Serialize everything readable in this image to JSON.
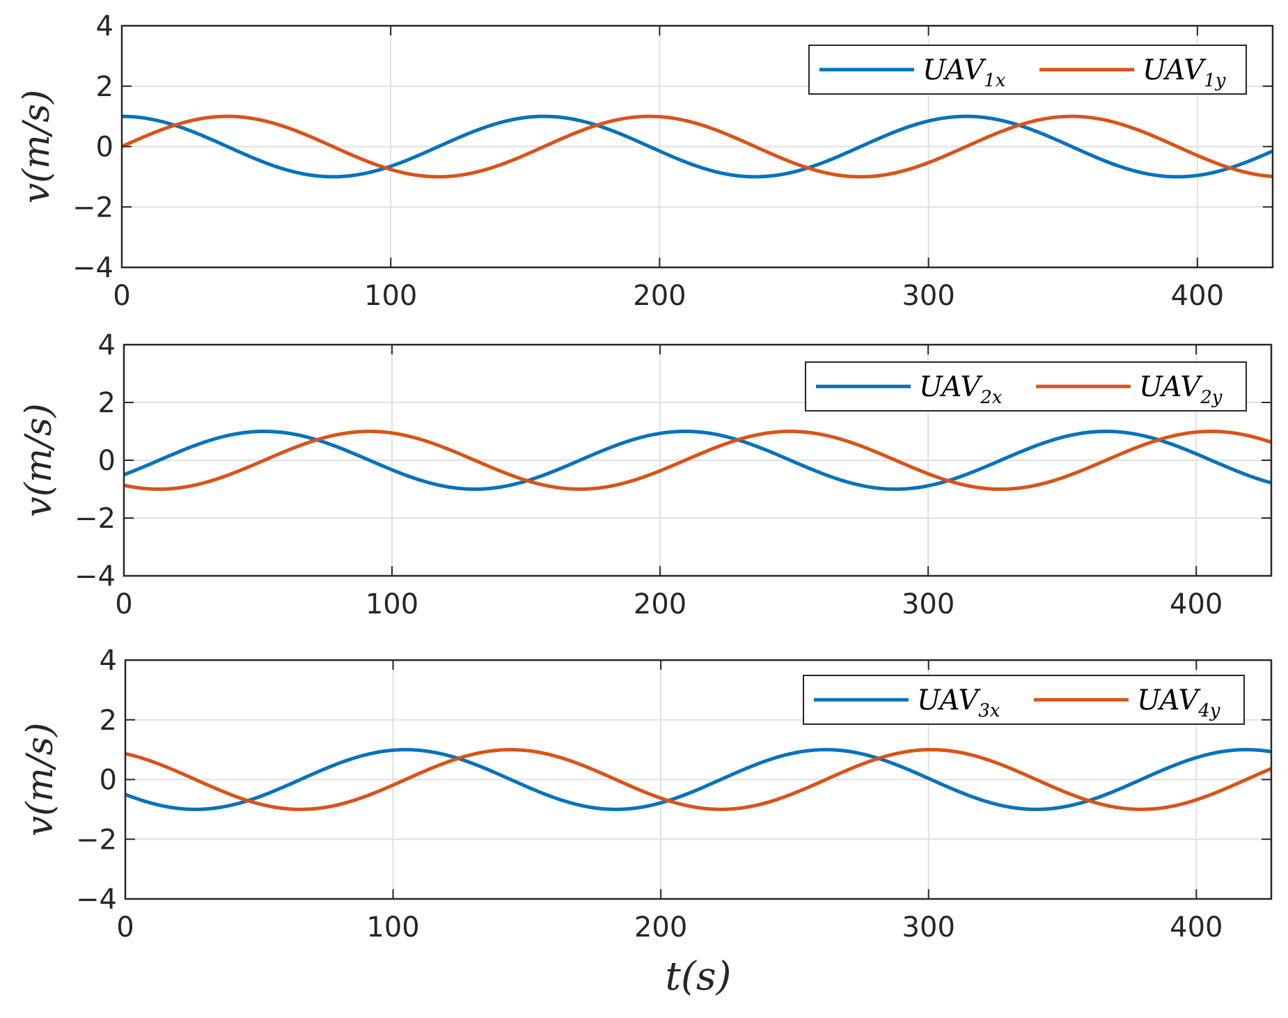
{
  "chart_data": [
    {
      "type": "line",
      "ylabel": "v(m/s)",
      "xlabel": "",
      "xlim": [
        0,
        428
      ],
      "ylim": [
        -4,
        4
      ],
      "xticks": [
        0,
        100,
        200,
        300,
        400
      ],
      "yticks": [
        -4,
        -2,
        0,
        2,
        4
      ],
      "grid": true,
      "legend_position": "top-right",
      "series": [
        {
          "name": "UAV1x",
          "legend_base": "UAV",
          "legend_sub": "1x",
          "color": "#0072BD",
          "amplitude": 1,
          "period": 157,
          "phase_deg": 90
        },
        {
          "name": "UAV1y",
          "legend_base": "UAV",
          "legend_sub": "1y",
          "color": "#D95319",
          "amplitude": 1,
          "period": 157,
          "phase_deg": 0
        }
      ]
    },
    {
      "type": "line",
      "ylabel": "v(m/s)",
      "xlabel": "",
      "xlim": [
        0,
        428
      ],
      "ylim": [
        -4,
        4
      ],
      "xticks": [
        0,
        100,
        200,
        300,
        400
      ],
      "yticks": [
        -4,
        -2,
        0,
        2,
        4
      ],
      "grid": true,
      "legend_position": "top-right",
      "series": [
        {
          "name": "UAV2x",
          "legend_base": "UAV",
          "legend_sub": "2x",
          "color": "#0072BD",
          "amplitude": 1,
          "period": 157,
          "phase_deg": -30
        },
        {
          "name": "UAV2y",
          "legend_base": "UAV",
          "legend_sub": "2y",
          "color": "#D95319",
          "amplitude": 1,
          "period": 157,
          "phase_deg": -120
        }
      ]
    },
    {
      "type": "line",
      "ylabel": "v(m/s)",
      "xlabel": "t(s)",
      "xlim": [
        0,
        428
      ],
      "ylim": [
        -4,
        4
      ],
      "xticks": [
        0,
        100,
        200,
        300,
        400
      ],
      "yticks": [
        -4,
        -2,
        0,
        2,
        4
      ],
      "grid": true,
      "legend_position": "top-right",
      "series": [
        {
          "name": "UAV3x",
          "legend_base": "UAV",
          "legend_sub": "3x",
          "color": "#0072BD",
          "amplitude": 1,
          "period": 157,
          "phase_deg": -150
        },
        {
          "name": "UAV4y",
          "legend_base": "UAV",
          "legend_sub": "4y",
          "color": "#D95319",
          "amplitude": 1,
          "period": 157,
          "phase_deg": 120
        }
      ]
    }
  ]
}
